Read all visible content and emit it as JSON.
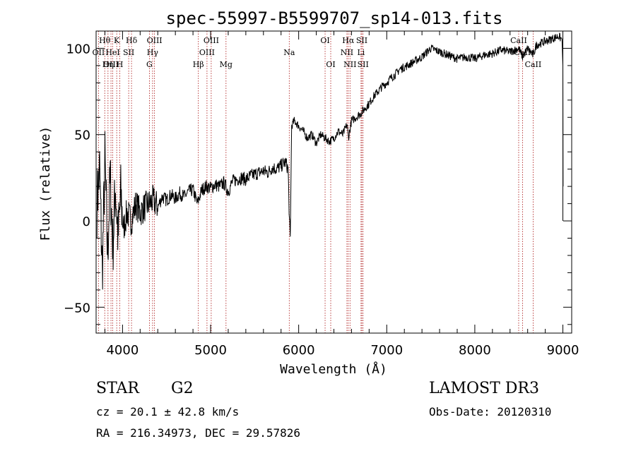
{
  "chart_data": {
    "type": "line",
    "title": "spec-55997-B5599707_sp14-013.fits",
    "xlabel": "Wavelength (Å)",
    "ylabel": "Flux (relative)",
    "xlim": [
      3700,
      9100
    ],
    "ylim": [
      -65,
      110
    ],
    "xticks": [
      4000,
      5000,
      6000,
      7000,
      8000,
      9000
    ],
    "yticks": [
      -50,
      0,
      50,
      100
    ],
    "series": [
      {
        "name": "spectrum",
        "x": [
          3710,
          3740,
          3770,
          3800,
          3830,
          3860,
          3890,
          3920,
          3950,
          3980,
          4010,
          4050,
          4100,
          4150,
          4200,
          4250,
          4300,
          4350,
          4400,
          4450,
          4500,
          4550,
          4600,
          4650,
          4700,
          4750,
          4800,
          4850,
          4900,
          4950,
          5000,
          5050,
          5100,
          5150,
          5200,
          5250,
          5300,
          5350,
          5400,
          5450,
          5500,
          5550,
          5600,
          5650,
          5700,
          5750,
          5800,
          5850,
          5880,
          5895,
          5905,
          5920,
          5950,
          6000,
          6050,
          6100,
          6150,
          6200,
          6250,
          6300,
          6350,
          6400,
          6450,
          6500,
          6550,
          6565,
          6600,
          6650,
          6700,
          6750,
          6800,
          6850,
          6900,
          6950,
          7000,
          7050,
          7100,
          7150,
          7200,
          7300,
          7400,
          7500,
          7600,
          7700,
          7800,
          7900,
          8000,
          8100,
          8200,
          8300,
          8400,
          8500,
          8542,
          8600,
          8662,
          8700,
          8750,
          8800,
          8850,
          8900,
          8950,
          8990,
          9000,
          9002
        ],
        "y": [
          10,
          30,
          -30,
          35,
          -20,
          25,
          -15,
          20,
          -10,
          15,
          -5,
          5,
          0,
          10,
          5,
          8,
          10,
          12,
          8,
          14,
          12,
          15,
          13,
          16,
          14,
          17,
          18,
          10,
          18,
          20,
          19,
          21,
          20,
          22,
          17,
          23,
          24,
          25,
          24,
          26,
          27,
          28,
          29,
          28,
          31,
          30,
          32,
          34,
          30,
          0,
          -10,
          55,
          58,
          55,
          52,
          48,
          50,
          45,
          50,
          48,
          46,
          48,
          52,
          50,
          56,
          48,
          58,
          60,
          62,
          65,
          68,
          72,
          75,
          78,
          80,
          83,
          85,
          88,
          89,
          92,
          95,
          100,
          98,
          96,
          94,
          95,
          94,
          96,
          97,
          99,
          98,
          100,
          95,
          100,
          96,
          102,
          103,
          104,
          105,
          106,
          107,
          105,
          90,
          20
        ]
      }
    ],
    "lines": [
      {
        "label": "Hθ",
        "x": 3798,
        "row": 0
      },
      {
        "label": "OII",
        "x": 3727,
        "row": 1
      },
      {
        "label": "OIII",
        "x": 3869,
        "row": 2
      },
      {
        "label": "K",
        "x": 3934,
        "row": 0
      },
      {
        "label": "HeI",
        "x": 3889,
        "row": 1
      },
      {
        "label": "Hη",
        "x": 3835,
        "row": 2
      },
      {
        "label": "Hδ",
        "x": 4102,
        "row": 0
      },
      {
        "label": "SII",
        "x": 4070,
        "row": 1
      },
      {
        "label": "H",
        "x": 3969,
        "row": 2
      },
      {
        "label": "OIII",
        "x": 4363,
        "row": 0
      },
      {
        "label": "Hγ",
        "x": 4341,
        "row": 1
      },
      {
        "label": "G",
        "x": 4305,
        "row": 2
      },
      {
        "label": "OIII",
        "x": 5007,
        "row": 0
      },
      {
        "label": "OIII",
        "x": 4959,
        "row": 1
      },
      {
        "label": "Hβ",
        "x": 4861,
        "row": 2
      },
      {
        "label": "Mg",
        "x": 5175,
        "row": 2
      },
      {
        "label": "Na",
        "x": 5893,
        "row": 1
      },
      {
        "label": "OI",
        "x": 6300,
        "row": 0
      },
      {
        "label": "OI",
        "x": 6364,
        "row": 2
      },
      {
        "label": "Hα",
        "x": 6563,
        "row": 0
      },
      {
        "label": "NII",
        "x": 6548,
        "row": 1
      },
      {
        "label": "NII",
        "x": 6583,
        "row": 2
      },
      {
        "label": "SII",
        "x": 6717,
        "row": 0
      },
      {
        "label": "Li",
        "x": 6708,
        "row": 1
      },
      {
        "label": "SII",
        "x": 6731,
        "row": 2
      },
      {
        "label": "CaII",
        "x": 8498,
        "row": 0
      },
      {
        "label": "CaII",
        "x": 8542,
        "row": 1
      },
      {
        "label": "CaII",
        "x": 8662,
        "row": 2
      }
    ]
  },
  "info": {
    "object_type": "STAR",
    "subclass": "G2",
    "survey": "LAMOST DR3",
    "redshift": "cz = 20.1 ± 42.8 km/s",
    "obs_date": "Obs-Date: 20120310",
    "coords": "RA = 216.34973, DEC =  29.57826"
  }
}
